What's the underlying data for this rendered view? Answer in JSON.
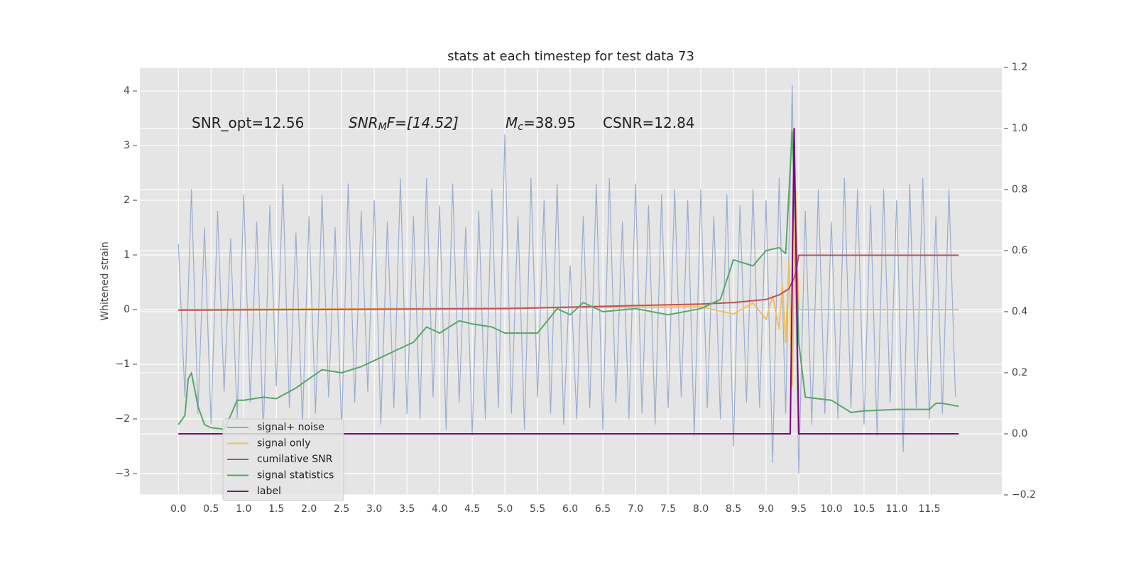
{
  "chart_data": {
    "type": "line",
    "title": "stats at each timestep for test data 73",
    "y_label": "Whitened strain",
    "annotations": [
      {
        "text": "SNR_opt=12.56"
      },
      {
        "text": "SNR",
        "sub": "M",
        "tail": "F=[14.52]"
      },
      {
        "text": "M",
        "sub": "c",
        "tail": "=38.95"
      },
      {
        "text": "CSNR=12.84"
      }
    ],
    "xlim": [
      -0.59,
      12.61
    ],
    "ylim": [
      -3.39,
      4.43
    ],
    "y2lim": [
      -0.2,
      1.2
    ],
    "xticks": [
      {
        "value": 0,
        "label": "0.0"
      },
      0.5,
      {
        "value": 1,
        "label": "1.0"
      },
      1.5,
      {
        "value": 2,
        "label": "2.0"
      },
      2.5,
      {
        "value": 3,
        "label": "3.0"
      },
      3.5,
      {
        "value": 4,
        "label": "4.0"
      },
      4.5,
      {
        "value": 5,
        "label": "5.0"
      },
      5.5,
      {
        "value": 6,
        "label": "6.0"
      },
      6.5,
      {
        "value": 7,
        "label": "7.0"
      },
      7.5,
      {
        "value": 8,
        "label": "8.0"
      },
      8.5,
      {
        "value": 9,
        "label": "9.0"
      },
      9.5,
      {
        "value": 10,
        "label": "10.0"
      },
      10.5,
      {
        "value": 11,
        "label": "11.0"
      },
      11.5
    ],
    "yticks": [
      {
        "value": -3,
        "label": "−3"
      },
      {
        "value": -2,
        "label": "−2"
      },
      {
        "value": -1,
        "label": "−1"
      },
      0,
      1,
      2,
      3,
      4
    ],
    "y2ticks": [
      {
        "value": -0.2,
        "label": "−0.2"
      },
      {
        "value": 0,
        "label": "0.0"
      },
      0.2,
      0.4,
      0.6,
      0.8,
      {
        "value": 1,
        "label": "1.0"
      },
      1.2
    ],
    "grid": true,
    "legend": "lower left",
    "series": [
      {
        "name": "signal+ noise",
        "color": "#92a6cc",
        "x": [
          0,
          0.1,
          0.2,
          0.3,
          0.4,
          0.5,
          0.6,
          0.7,
          0.8,
          0.9,
          1,
          1.1,
          1.2,
          1.3,
          1.4,
          1.5,
          1.6,
          1.7,
          1.8,
          1.9,
          2,
          2.1,
          2.2,
          2.3,
          2.4,
          2.5,
          2.6,
          2.7,
          2.8,
          2.9,
          3,
          3.1,
          3.2,
          3.3,
          3.4,
          3.5,
          3.6,
          3.7,
          3.8,
          3.9,
          4,
          4.1,
          4.2,
          4.3,
          4.4,
          4.5,
          4.6,
          4.7,
          4.8,
          4.9,
          5,
          5.1,
          5.2,
          5.3,
          5.4,
          5.5,
          5.6,
          5.7,
          5.8,
          5.9,
          6,
          6.1,
          6.2,
          6.3,
          6.4,
          6.5,
          6.6,
          6.7,
          6.8,
          6.9,
          7,
          7.1,
          7.2,
          7.3,
          7.4,
          7.5,
          7.6,
          7.7,
          7.8,
          7.9,
          8,
          8.1,
          8.2,
          8.3,
          8.4,
          8.5,
          8.6,
          8.7,
          8.8,
          8.9,
          9,
          9.1,
          9.2,
          9.3,
          9.4,
          9.5,
          9.6,
          9.7,
          9.8,
          9.9,
          10,
          10.1,
          10.2,
          10.3,
          10.4,
          10.5,
          10.6,
          10.7,
          10.8,
          10.9,
          11,
          11.1,
          11.2,
          11.3,
          11.4,
          11.5,
          11.6,
          11.7,
          11.8,
          11.9
        ],
        "values": [
          1.2,
          -1.6,
          2.2,
          -1.9,
          1.5,
          -2.1,
          1.8,
          -1.5,
          1.3,
          -2.0,
          2.1,
          -1.7,
          1.6,
          -2.3,
          1.9,
          -1.4,
          2.3,
          -1.8,
          1.4,
          -2.1,
          1.7,
          -1.9,
          2.1,
          -1.6,
          1.5,
          -2.2,
          2.3,
          -1.7,
          1.8,
          -1.5,
          2.0,
          -2.1,
          1.6,
          -1.8,
          2.4,
          -1.9,
          1.7,
          -2.0,
          2.4,
          -1.6,
          1.9,
          -2.2,
          2.3,
          -1.7,
          1.5,
          -2.3,
          1.8,
          -2.0,
          2.2,
          -1.8,
          3.2,
          -1.9,
          1.7,
          -2.2,
          2.4,
          -1.6,
          2.0,
          -1.9,
          2.3,
          -2.1,
          0.8,
          -2.0,
          1.7,
          -1.8,
          2.3,
          -2.2,
          2.4,
          -1.7,
          1.6,
          -2.0,
          2.3,
          -1.9,
          1.9,
          -2.1,
          2.1,
          -1.8,
          2.2,
          -1.6,
          2.0,
          -2.3,
          2.2,
          -1.8,
          1.7,
          -2.0,
          2.1,
          -2.5,
          1.9,
          -1.7,
          2.2,
          -1.8,
          2.0,
          -2.8,
          2.4,
          -1.9,
          4.1,
          -3.0,
          1.8,
          -2.1,
          2.2,
          -1.9,
          1.6,
          -2.0,
          2.4,
          -1.8,
          2.2,
          -2.1,
          1.9,
          -2.3,
          2.2,
          -1.7,
          2.0,
          -2.6,
          2.3,
          -1.8,
          2.4,
          -2.0,
          1.7,
          -1.9,
          2.2,
          -1.6
        ]
      },
      {
        "name": "signal only",
        "color": "#f0c060",
        "x": [
          0,
          8.0,
          8.5,
          8.8,
          9.0,
          9.1,
          9.2,
          9.25,
          9.3,
          9.35,
          9.4,
          9.45,
          9.5,
          11.95
        ],
        "values": [
          0,
          0.05,
          -0.08,
          0.12,
          -0.18,
          0.25,
          -0.35,
          0.45,
          -0.6,
          0.9,
          -1.4,
          2.2,
          0,
          0
        ]
      },
      {
        "name": "cumilative SNR",
        "color": "#c44e52",
        "axis": "y2",
        "x": [
          0,
          5,
          7,
          8,
          8.5,
          9.0,
          9.2,
          9.35,
          9.45,
          9.5,
          11.95
        ],
        "values": [
          0.405,
          0.41,
          0.42,
          0.425,
          0.43,
          0.44,
          0.455,
          0.475,
          0.52,
          0.585,
          0.585
        ]
      },
      {
        "name": "signal statistics",
        "color": "#55a868",
        "axis": "y2",
        "x": [
          0,
          0.1,
          0.15,
          0.2,
          0.3,
          0.4,
          0.5,
          0.7,
          0.8,
          0.9,
          1.0,
          1.3,
          1.5,
          1.8,
          2.0,
          2.2,
          2.5,
          2.8,
          3.0,
          3.3,
          3.6,
          3.8,
          4.0,
          4.3,
          4.5,
          4.8,
          5.0,
          5.5,
          5.8,
          6.0,
          6.2,
          6.5,
          7.0,
          7.5,
          8.0,
          8.3,
          8.5,
          8.8,
          9.0,
          9.2,
          9.3,
          9.4,
          9.45,
          9.5,
          9.6,
          10.0,
          10.3,
          10.5,
          11.0,
          11.5,
          11.6,
          11.7,
          11.95
        ],
        "values": [
          0.03,
          0.06,
          0.18,
          0.2,
          0.09,
          0.03,
          0.02,
          0.015,
          0.06,
          0.11,
          0.11,
          0.12,
          0.115,
          0.15,
          0.18,
          0.21,
          0.2,
          0.22,
          0.24,
          0.27,
          0.3,
          0.35,
          0.33,
          0.37,
          0.36,
          0.35,
          0.33,
          0.33,
          0.41,
          0.39,
          0.43,
          0.4,
          0.41,
          0.39,
          0.41,
          0.44,
          0.57,
          0.55,
          0.6,
          0.61,
          0.59,
          0.99,
          0.7,
          0.3,
          0.12,
          0.11,
          0.07,
          0.075,
          0.08,
          0.08,
          0.1,
          0.1,
          0.09
        ]
      },
      {
        "name": "label",
        "color": "#800080",
        "axis": "y2",
        "x": [
          0,
          9.37,
          9.43,
          9.5,
          11.95
        ],
        "values": [
          0,
          0,
          1,
          0,
          0
        ]
      }
    ]
  }
}
